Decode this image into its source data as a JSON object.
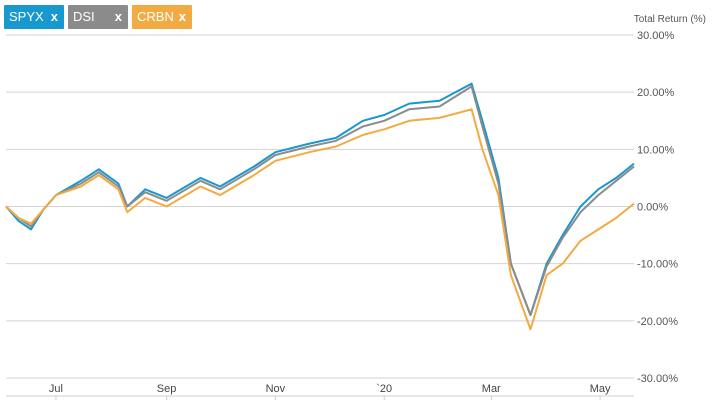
{
  "legend_chips": [
    {
      "label": "SPYX",
      "close": "x",
      "color": "#1798cf"
    },
    {
      "label": "DSI",
      "close": "x",
      "color": "#8b8b8b"
    },
    {
      "label": "CRBN",
      "close": "x",
      "color": "#f2ab42"
    }
  ],
  "chart_data": {
    "type": "line",
    "ylabel": "Total Return (%)",
    "ylim": [
      -30,
      30
    ],
    "y_ticks": [
      "30.00%",
      "20.00%",
      "10.00%",
      "0.00%",
      "-10.00%",
      "-20.00%",
      "-30.00%"
    ],
    "x_ticks": [
      "Jul",
      "Sep",
      "Nov",
      "`20",
      "Mar",
      "May"
    ],
    "x_tick_dates": [
      "2019-07-01",
      "2019-09-01",
      "2019-11-01",
      "2020-01-01",
      "2020-03-01",
      "2020-05-01"
    ],
    "x_range": [
      "2019-06-03",
      "2020-05-20"
    ],
    "grid": true,
    "series": [
      {
        "name": "SPYX",
        "color": "#1798cf",
        "points": [
          [
            "2019-06-03",
            0
          ],
          [
            "2019-06-10",
            -2.5
          ],
          [
            "2019-06-17",
            -4
          ],
          [
            "2019-06-24",
            -0.5
          ],
          [
            "2019-07-01",
            2
          ],
          [
            "2019-07-15",
            4.5
          ],
          [
            "2019-07-25",
            6.5
          ],
          [
            "2019-08-05",
            4
          ],
          [
            "2019-08-10",
            0
          ],
          [
            "2019-08-20",
            3
          ],
          [
            "2019-09-01",
            1.5
          ],
          [
            "2019-09-20",
            5
          ],
          [
            "2019-10-01",
            3.5
          ],
          [
            "2019-10-20",
            7
          ],
          [
            "2019-11-01",
            9.5
          ],
          [
            "2019-11-20",
            11
          ],
          [
            "2019-12-05",
            12
          ],
          [
            "2019-12-20",
            15
          ],
          [
            "2020-01-01",
            16
          ],
          [
            "2020-01-15",
            18
          ],
          [
            "2020-02-01",
            18.5
          ],
          [
            "2020-02-19",
            21.5
          ],
          [
            "2020-02-25",
            15
          ],
          [
            "2020-03-05",
            5
          ],
          [
            "2020-03-12",
            -10
          ],
          [
            "2020-03-23",
            -19
          ],
          [
            "2020-04-01",
            -10
          ],
          [
            "2020-04-10",
            -5
          ],
          [
            "2020-04-20",
            0
          ],
          [
            "2020-04-30",
            3
          ],
          [
            "2020-05-10",
            5
          ],
          [
            "2020-05-20",
            7.5
          ]
        ]
      },
      {
        "name": "DSI",
        "color": "#8b8b8b",
        "points": [
          [
            "2019-06-03",
            0
          ],
          [
            "2019-06-10",
            -2
          ],
          [
            "2019-06-17",
            -3.5
          ],
          [
            "2019-06-24",
            -0.5
          ],
          [
            "2019-07-01",
            2
          ],
          [
            "2019-07-15",
            4
          ],
          [
            "2019-07-25",
            6
          ],
          [
            "2019-08-05",
            3.5
          ],
          [
            "2019-08-10",
            0
          ],
          [
            "2019-08-20",
            2.5
          ],
          [
            "2019-09-01",
            1
          ],
          [
            "2019-09-20",
            4.5
          ],
          [
            "2019-10-01",
            3
          ],
          [
            "2019-10-20",
            6.5
          ],
          [
            "2019-11-01",
            9
          ],
          [
            "2019-11-20",
            10.5
          ],
          [
            "2019-12-05",
            11.5
          ],
          [
            "2019-12-20",
            14
          ],
          [
            "2020-01-01",
            15
          ],
          [
            "2020-01-15",
            17
          ],
          [
            "2020-02-01",
            17.5
          ],
          [
            "2020-02-19",
            21
          ],
          [
            "2020-02-25",
            14
          ],
          [
            "2020-03-05",
            4
          ],
          [
            "2020-03-12",
            -10
          ],
          [
            "2020-03-23",
            -19
          ],
          [
            "2020-04-01",
            -10.5
          ],
          [
            "2020-04-10",
            -5.5
          ],
          [
            "2020-04-20",
            -1
          ],
          [
            "2020-04-30",
            2
          ],
          [
            "2020-05-10",
            4.5
          ],
          [
            "2020-05-20",
            7
          ]
        ]
      },
      {
        "name": "CRBN",
        "color": "#f2ab42",
        "points": [
          [
            "2019-06-03",
            0
          ],
          [
            "2019-06-10",
            -2
          ],
          [
            "2019-06-17",
            -3
          ],
          [
            "2019-06-24",
            -0.5
          ],
          [
            "2019-07-01",
            2
          ],
          [
            "2019-07-15",
            3.5
          ],
          [
            "2019-07-25",
            5.5
          ],
          [
            "2019-08-05",
            3
          ],
          [
            "2019-08-10",
            -1
          ],
          [
            "2019-08-20",
            1.5
          ],
          [
            "2019-09-01",
            0
          ],
          [
            "2019-09-20",
            3.5
          ],
          [
            "2019-10-01",
            2
          ],
          [
            "2019-10-20",
            5.5
          ],
          [
            "2019-11-01",
            8
          ],
          [
            "2019-11-20",
            9.5
          ],
          [
            "2019-12-05",
            10.5
          ],
          [
            "2019-12-20",
            12.5
          ],
          [
            "2020-01-01",
            13.5
          ],
          [
            "2020-01-15",
            15
          ],
          [
            "2020-02-01",
            15.5
          ],
          [
            "2020-02-19",
            17
          ],
          [
            "2020-02-25",
            10
          ],
          [
            "2020-03-05",
            2
          ],
          [
            "2020-03-12",
            -12
          ],
          [
            "2020-03-23",
            -21.5
          ],
          [
            "2020-04-01",
            -12
          ],
          [
            "2020-04-10",
            -10
          ],
          [
            "2020-04-20",
            -6
          ],
          [
            "2020-04-30",
            -4
          ],
          [
            "2020-05-10",
            -2
          ],
          [
            "2020-05-20",
            0.5
          ]
        ]
      }
    ]
  }
}
